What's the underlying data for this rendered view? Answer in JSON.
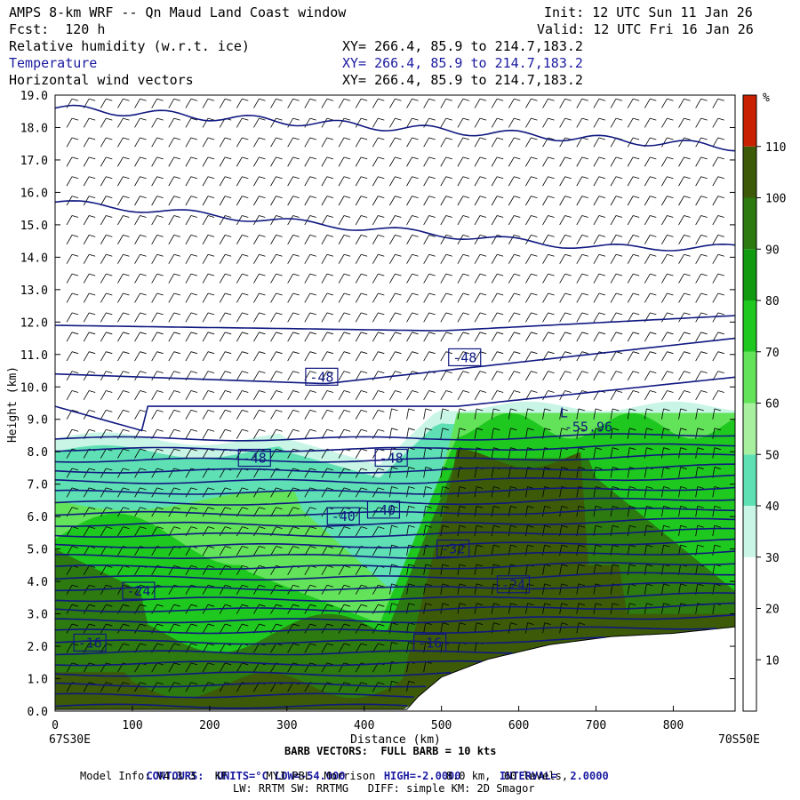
{
  "header": {
    "title_line": "AMPS 8-km WRF -- Qn Maud Land Coast window",
    "init_line": "Init: 12 UTC Sun 11 Jan 26",
    "fcst_line": "Fcst:  120 h",
    "valid_line": "Valid: 12 UTC Fri 16 Jan 26",
    "fields": [
      {
        "name": "Relative humidity (w.r.t. ice)",
        "xy": "XY= 266.4, 85.9 to 214.7,183.2",
        "color": "#000000"
      },
      {
        "name": "Temperature",
        "xy": "XY= 266.4, 85.9 to 214.7,183.2",
        "color": "#1a1aa0"
      },
      {
        "name": "Horizontal wind vectors",
        "xy": "XY= 266.4, 85.9 to 214.7,183.2",
        "color": "#000000"
      }
    ]
  },
  "chart_data": {
    "type": "heatmap",
    "xlabel": "Distance (km)",
    "ylabel": "Height (km)",
    "xlim": [
      0,
      880
    ],
    "ylim": [
      0,
      19
    ],
    "x_ticks": [
      0,
      100,
      200,
      300,
      400,
      500,
      600,
      700,
      800
    ],
    "y_ticks": [
      "0.0",
      "1.0",
      "2.0",
      "3.0",
      "4.0",
      "5.0",
      "6.0",
      "7.0",
      "8.0",
      "9.0",
      "10.0",
      "11.0",
      "12.0",
      "13.0",
      "14.0",
      "15.0",
      "16.0",
      "17.0",
      "18.0",
      "19.0"
    ],
    "left_endpoint": "67S30E",
    "right_endpoint": "70S50E",
    "colorbar": {
      "unit": "%",
      "levels": [
        10,
        20,
        30,
        40,
        50,
        60,
        70,
        80,
        90,
        100,
        110
      ],
      "colors": [
        "#ffffff",
        "#ffffff",
        "#ffffff",
        "#c8f5e6",
        "#5fe0b4",
        "#a8f0a0",
        "#63e35a",
        "#1fc81f",
        "#0f9a0f",
        "#2c7a10",
        "#3c5a08",
        "#c82000"
      ]
    },
    "temperature_labels": [
      {
        "value": "-48",
        "x": 345,
        "y": 10.3
      },
      {
        "value": "-48",
        "x": 530,
        "y": 10.9
      },
      {
        "value": "-48",
        "x": 258,
        "y": 7.8
      },
      {
        "value": "-48",
        "x": 435,
        "y": 7.8
      },
      {
        "value": "-40",
        "x": 373,
        "y": 6.0
      },
      {
        "value": "-40",
        "x": 425,
        "y": 6.2
      },
      {
        "value": "-32",
        "x": 515,
        "y": 5.0
      },
      {
        "value": "-24",
        "x": 108,
        "y": 3.7
      },
      {
        "value": "-24",
        "x": 593,
        "y": 3.9
      },
      {
        "value": "-16",
        "x": 45,
        "y": 2.1
      },
      {
        "value": "-16",
        "x": 485,
        "y": 2.1
      }
    ],
    "low_marker": {
      "label": "L",
      "value": "-55.96",
      "x": 705,
      "y": 9.0
    },
    "contours": {
      "units": "°C",
      "low": "-54.000",
      "high": "-2.0000",
      "interval": "2.0000"
    }
  },
  "footer": {
    "barb_line": "BARB VECTORS:  FULL BARB = 10 kts",
    "contours_label": "CONTOURS:",
    "units_label": "UNITS=°C",
    "low_label": "LOW=",
    "low_value": "-54.000",
    "high_label": "HIGH=",
    "high_value": "-2.0000",
    "interval_label": "INTERVAL=",
    "interval_value": "2.0000",
    "model_line": "Model Info: V4.3.3   KF      MYJ PBL  Morrison           8.0 km,  60 levels,",
    "physics_line": "LW: RRTM SW: RRTMG   DIFF: simple KM: 2D Smagor"
  }
}
